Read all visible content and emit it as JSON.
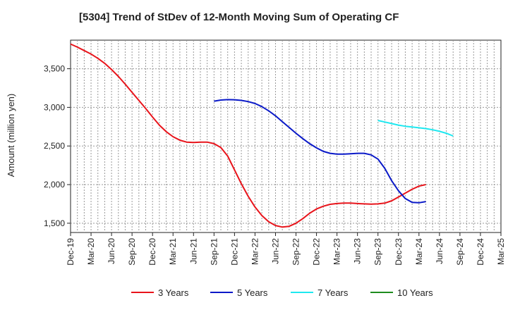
{
  "chart_data": {
    "type": "line",
    "title": "[5304]  Trend of StDev of 12-Month Moving Sum of Operating CF",
    "ylabel": "Amount (million yen)",
    "xlabel": "",
    "ylim": [
      1380,
      3870
    ],
    "yticks": [
      1500,
      2000,
      2500,
      3000,
      3500
    ],
    "ytick_labels": [
      "1,500",
      "2,000",
      "2,500",
      "3,000",
      "3,500"
    ],
    "x_categories": [
      "Dec-19",
      "Mar-20",
      "Jun-20",
      "Sep-20",
      "Dec-20",
      "Mar-21",
      "Jun-21",
      "Sep-21",
      "Dec-21",
      "Mar-22",
      "Jun-22",
      "Sep-22",
      "Dec-22",
      "Mar-23",
      "Jun-23",
      "Sep-23",
      "Dec-23",
      "Mar-24",
      "Jun-24",
      "Sep-24",
      "Dec-24",
      "Mar-25"
    ],
    "grid": true,
    "legend_position": "bottom",
    "series": [
      {
        "name": "3 Years",
        "color": "#e8141b",
        "start_index": 0,
        "values": [
          3820,
          3780,
          3735,
          3690,
          3635,
          3570,
          3490,
          3400,
          3300,
          3195,
          3090,
          2985,
          2875,
          2770,
          2685,
          2620,
          2575,
          2550,
          2545,
          2550,
          2550,
          2530,
          2480,
          2370,
          2190,
          2010,
          1850,
          1710,
          1600,
          1520,
          1470,
          1450,
          1460,
          1500,
          1560,
          1630,
          1685,
          1720,
          1745,
          1755,
          1760,
          1760,
          1755,
          1750,
          1748,
          1750,
          1760,
          1790,
          1840,
          1890,
          1940,
          1980,
          2000
        ]
      },
      {
        "name": "5 Years",
        "color": "#0a19c8",
        "start_index": 21,
        "values": [
          3080,
          3095,
          3100,
          3098,
          3090,
          3075,
          3050,
          3010,
          2955,
          2890,
          2815,
          2740,
          2665,
          2595,
          2530,
          2475,
          2430,
          2405,
          2395,
          2395,
          2400,
          2405,
          2405,
          2385,
          2330,
          2210,
          2050,
          1920,
          1820,
          1770,
          1765,
          1780
        ]
      },
      {
        "name": "7 Years",
        "color": "#1ee8f0",
        "start_index": 45,
        "values": [
          2830,
          2810,
          2790,
          2770,
          2755,
          2745,
          2735,
          2725,
          2710,
          2690,
          2665,
          2630
        ]
      },
      {
        "name": "10 Years",
        "color": "#1e8c1e",
        "start_index": null,
        "values": []
      }
    ]
  }
}
